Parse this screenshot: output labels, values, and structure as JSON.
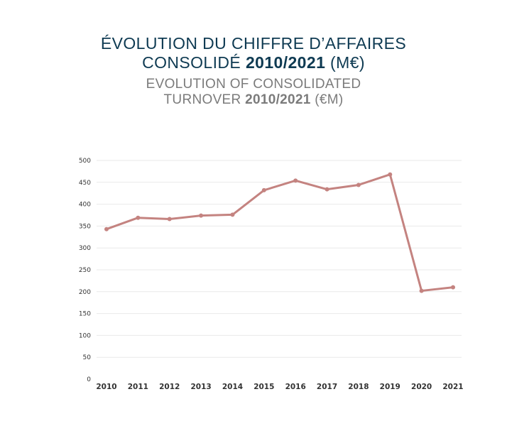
{
  "title": {
    "fr_line1": "ÉVOLUTION DU CHIFFRE D’AFFAIRES",
    "fr_line2_pre": "CONSOLIDÉ ",
    "fr_line2_bold": "2010/2021",
    "fr_line2_post": " (M€)",
    "en_line1": "EVOLUTION OF CONSOLIDATED",
    "en_line2_pre": "TURNOVER ",
    "en_line2_bold": "2010/2021",
    "en_line2_post": " (€M)"
  },
  "colors": {
    "series": "#c48380",
    "title_fr": "#0e3a52",
    "title_en": "#7b7b7b"
  },
  "chart_data": {
    "type": "line",
    "title": "ÉVOLUTION DU CHIFFRE D’AFFAIRES CONSOLIDÉ 2010/2021 (M€) / EVOLUTION OF CONSOLIDATED TURNOVER 2010/2021 (€M)",
    "xlabel": "",
    "ylabel": "",
    "categories": [
      "2010",
      "2011",
      "2012",
      "2013",
      "2014",
      "2015",
      "2016",
      "2017",
      "2018",
      "2019",
      "2020",
      "2021"
    ],
    "series": [
      {
        "values": [
          343,
          369,
          366,
          374,
          376,
          432,
          454,
          434,
          444,
          468,
          202,
          210
        ]
      }
    ],
    "ylim": [
      0,
      500
    ],
    "yticks": [
      0,
      50,
      100,
      150,
      200,
      250,
      300,
      350,
      400,
      450,
      500
    ],
    "grid": true,
    "legend": "none"
  }
}
